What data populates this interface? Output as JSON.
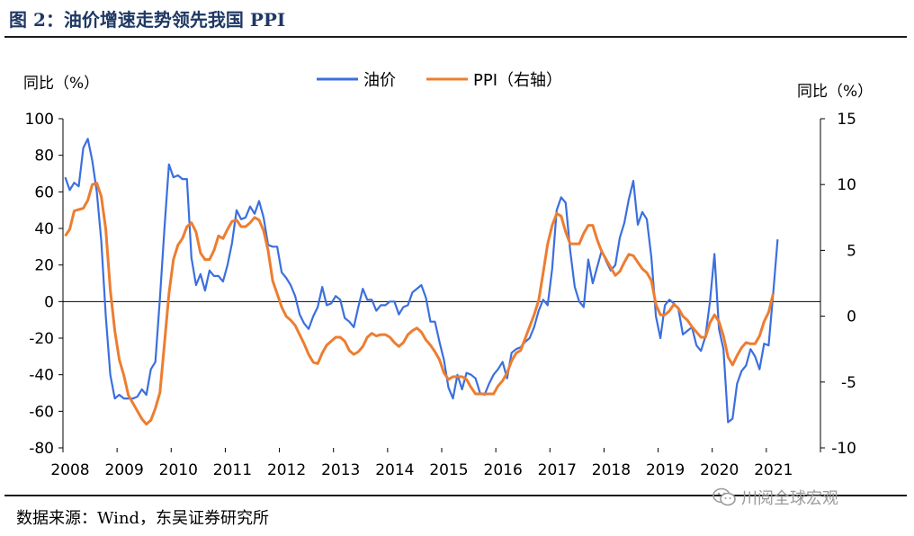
{
  "figure": {
    "title": "图 2：油价增速走势领先我国 PPI",
    "source": "数据来源：Wind，东吴证券研究所",
    "watermark": "川阅全球宏观",
    "watermark_icon": "wechat-icon"
  },
  "chart_data": {
    "type": "line",
    "x_start": "2008-01",
    "x_step": "month",
    "x_ticks": [
      "2008",
      "2009",
      "2010",
      "2011",
      "2012",
      "2013",
      "2014",
      "2015",
      "2016",
      "2017",
      "2018",
      "2019",
      "2020",
      "2021"
    ],
    "y_left_label": "同比（%）",
    "y_right_label": "同比（%）",
    "y_left_ticks": [
      100,
      80,
      60,
      40,
      20,
      0,
      -20,
      -40,
      -60,
      -80
    ],
    "y_right_ticks": [
      15,
      10,
      5,
      0,
      -5,
      -10
    ],
    "y_left_range": [
      -80,
      100
    ],
    "y_right_range": [
      -10,
      15
    ],
    "grid": false,
    "legend_position": "top",
    "series": [
      {
        "name": "油价",
        "axis": "left",
        "color": "#3b6fdf",
        "values": [
          68,
          61,
          65,
          63,
          84,
          89,
          77,
          60,
          33,
          -8,
          -40,
          -53,
          -51,
          -53,
          -53,
          -53,
          -52,
          -48,
          -51,
          -37,
          -33,
          2,
          40,
          75,
          68,
          69,
          67,
          67,
          24,
          9,
          15,
          6,
          17,
          14,
          14,
          11,
          20,
          32,
          50,
          45,
          46,
          52,
          48,
          55,
          46,
          31,
          30,
          30,
          16,
          13,
          9,
          3,
          -7,
          -12,
          -15,
          -8,
          -3,
          8,
          -2,
          -1,
          3,
          1,
          -9,
          -11,
          -14,
          -3,
          7,
          1,
          1,
          -5,
          -2,
          -2,
          0,
          0,
          -7,
          -3,
          -2,
          5,
          7,
          9,
          2,
          -11,
          -11,
          -22,
          -32,
          -47,
          -53,
          -40,
          -48,
          -39,
          -40,
          -42,
          -50,
          -51,
          -45,
          -40,
          -37,
          -33,
          -42,
          -28,
          -26,
          -25,
          -22,
          -20,
          -14,
          -5,
          1,
          -2,
          18,
          50,
          57,
          54,
          28,
          8,
          0,
          -3,
          23,
          10,
          19,
          28,
          22,
          17,
          20,
          35,
          43,
          56,
          66,
          42,
          49,
          45,
          24,
          -8,
          -20,
          -2,
          1,
          -1,
          -4,
          -18,
          -16,
          -14,
          -24,
          -27,
          -19,
          0,
          26,
          -15,
          -26,
          -66,
          -64,
          -45,
          -38,
          -35,
          -26,
          -30,
          -37,
          -23,
          -24,
          4,
          34
        ]
      },
      {
        "name": "PPI（右轴）",
        "axis": "right",
        "color": "#ed7d31",
        "values": [
          6.1,
          6.6,
          8.0,
          8.1,
          8.2,
          8.8,
          10.0,
          10.1,
          9.1,
          6.6,
          2.0,
          -1.1,
          -3.3,
          -4.5,
          -6.0,
          -6.6,
          -7.2,
          -7.8,
          -8.2,
          -7.9,
          -7.0,
          -5.8,
          -2.1,
          1.7,
          4.3,
          5.4,
          5.9,
          6.8,
          7.1,
          6.4,
          4.8,
          4.3,
          4.3,
          5.0,
          6.1,
          5.9,
          6.6,
          7.2,
          7.3,
          6.8,
          6.8,
          7.1,
          7.5,
          7.3,
          6.5,
          5.0,
          2.7,
          1.7,
          0.7,
          0.0,
          -0.3,
          -0.7,
          -1.4,
          -2.1,
          -2.9,
          -3.5,
          -3.6,
          -2.8,
          -2.2,
          -1.9,
          -1.6,
          -1.6,
          -1.9,
          -2.6,
          -2.9,
          -2.7,
          -2.3,
          -1.6,
          -1.3,
          -1.5,
          -1.4,
          -1.4,
          -1.6,
          -2.0,
          -2.3,
          -2.0,
          -1.4,
          -1.1,
          -0.9,
          -1.2,
          -1.8,
          -2.2,
          -2.7,
          -3.3,
          -4.3,
          -4.8,
          -4.6,
          -4.6,
          -4.6,
          -4.8,
          -5.4,
          -5.9,
          -5.9,
          -5.9,
          -5.9,
          -5.9,
          -5.3,
          -4.9,
          -4.3,
          -3.4,
          -2.8,
          -2.6,
          -1.7,
          -0.8,
          0.1,
          1.2,
          3.3,
          5.5,
          6.9,
          7.8,
          7.6,
          6.4,
          5.5,
          5.5,
          5.5,
          6.3,
          6.9,
          6.9,
          5.8,
          4.9,
          4.3,
          3.7,
          3.1,
          3.4,
          4.1,
          4.7,
          4.6,
          4.1,
          3.6,
          3.3,
          2.7,
          0.9,
          0.1,
          0.1,
          0.4,
          0.9,
          0.6,
          0.0,
          -0.3,
          -0.8,
          -1.2,
          -1.6,
          -1.6,
          -0.5,
          0.1,
          -0.4,
          -1.5,
          -3.1,
          -3.7,
          -3.0,
          -2.4,
          -2.0,
          -2.1,
          -2.1,
          -1.5,
          -0.4,
          0.3,
          1.7
        ]
      }
    ]
  }
}
